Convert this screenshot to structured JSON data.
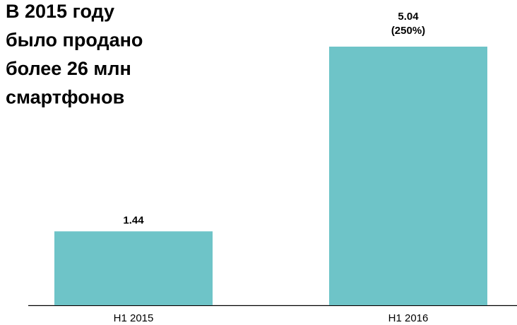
{
  "chart_data": {
    "type": "bar",
    "title": [
      "В 2015 году",
      "было продано",
      "более 26 млн",
      "смартфонов"
    ],
    "categories": [
      "H1 2015",
      "H1 2016"
    ],
    "values": [
      1.44,
      5.04
    ],
    "annotations": [
      {
        "x": "H1 2016",
        "text": "(250%)"
      }
    ],
    "color": "#6ec4c8"
  }
}
